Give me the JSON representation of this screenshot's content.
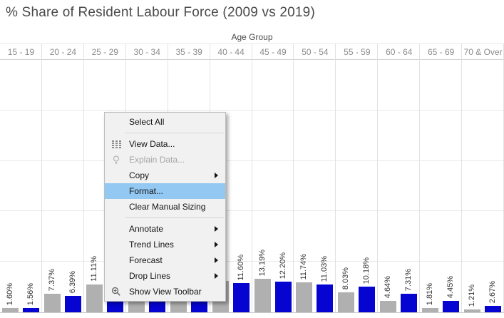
{
  "title": "% Share of Resident Labour Force (2009 vs 2019)",
  "x_axis": {
    "label": "Age Group"
  },
  "colors": {
    "bar_2009": "#b0b0b0",
    "bar_2019": "#0504d0",
    "menu_highlight": "#92c8f2",
    "title_text": "#4a4a4a",
    "header_text": "#8b8b8b",
    "bar_label_text": "#333333"
  },
  "chart_data": {
    "type": "bar",
    "title": "% Share of Resident Labour Force (2009 vs 2019)",
    "xlabel": "Age Group",
    "ylabel": "",
    "ylim": [
      0,
      100
    ],
    "gridline_pcts": [
      20,
      40,
      60,
      80
    ],
    "grid": true,
    "legend": "none",
    "categories": [
      "15 - 19",
      "20 - 24",
      "25 - 29",
      "30 - 34",
      "35 - 39",
      "40 - 44",
      "45 - 49",
      "50 - 54",
      "55 - 59",
      "60 - 64",
      "65 - 69",
      "70 & Over"
    ],
    "series": [
      {
        "name": "2009",
        "color_key": "bar_2009",
        "values": [
          1.6,
          7.37,
          11.11,
          null,
          null,
          null,
          13.19,
          11.74,
          8.03,
          4.64,
          1.81,
          1.21
        ],
        "labels": [
          "1.60%",
          "7.37%",
          "11.11%",
          "",
          "",
          "",
          "13.19%",
          "11.74%",
          "8.03%",
          "4.64%",
          "1.81%",
          "1.21%"
        ],
        "render_pct": [
          1.6,
          7.37,
          11.11,
          11.9,
          12.5,
          12.3,
          13.19,
          11.74,
          8.03,
          4.64,
          1.81,
          1.21
        ]
      },
      {
        "name": "2019",
        "color_key": "bar_2019",
        "values": [
          1.56,
          6.39,
          null,
          null,
          null,
          11.6,
          12.2,
          11.03,
          10.18,
          7.31,
          4.45,
          2.67
        ],
        "labels": [
          "1.56%",
          "6.39%",
          "",
          "",
          "",
          "11.60%",
          "12.20%",
          "11.03%",
          "10.18%",
          "7.31%",
          "4.45%",
          "2.67%"
        ],
        "render_pct": [
          1.56,
          6.39,
          9.9,
          10.6,
          11.4,
          11.6,
          12.2,
          11.03,
          10.18,
          7.31,
          4.45,
          2.67
        ]
      }
    ],
    "note": "null values are bars whose labels are hidden behind the open context menu"
  },
  "context_menu": {
    "items": [
      {
        "label": "Select All"
      },
      {
        "type": "separator"
      },
      {
        "label": "View Data...",
        "icon": "table-icon"
      },
      {
        "label": "Explain Data...",
        "icon": "lightbulb-icon",
        "disabled": true
      },
      {
        "label": "Copy",
        "submenu": true
      },
      {
        "label": "Format...",
        "highlighted": true
      },
      {
        "label": "Clear Manual Sizing"
      },
      {
        "type": "separator"
      },
      {
        "label": "Annotate",
        "submenu": true
      },
      {
        "label": "Trend Lines",
        "submenu": true
      },
      {
        "label": "Forecast",
        "submenu": true
      },
      {
        "label": "Drop Lines",
        "submenu": true
      },
      {
        "label": "Show View Toolbar",
        "icon": "zoom-icon"
      }
    ]
  }
}
